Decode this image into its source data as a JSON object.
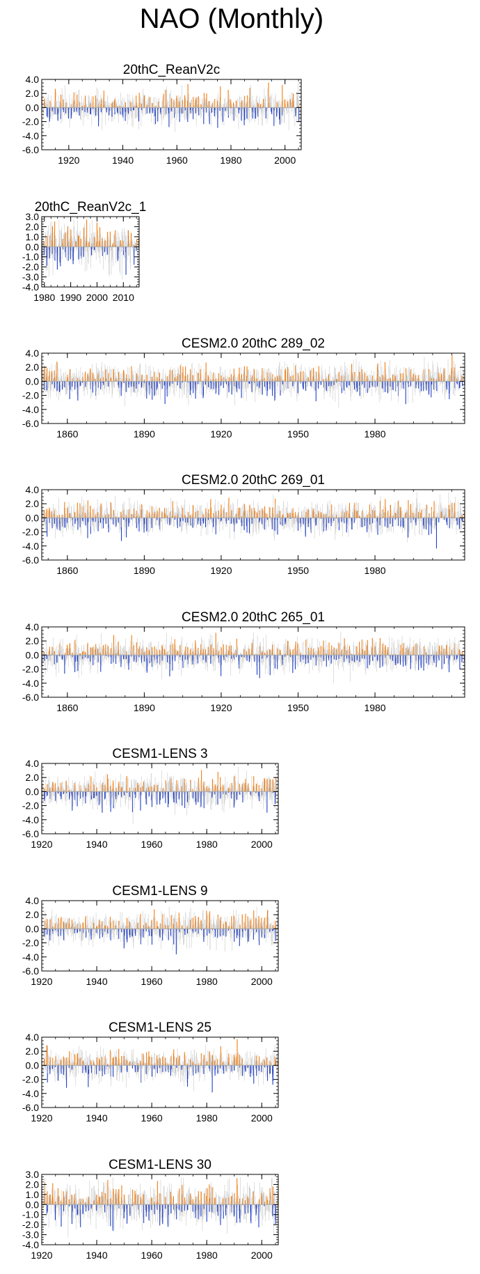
{
  "figure_title": "NAO (Monthly)",
  "colors": {
    "positive": "#f07c10",
    "negative": "#1f3fc8",
    "mean_line": "#aaaaaa",
    "axis": "#000000"
  },
  "chart_data": [
    {
      "type": "bar",
      "title": "20thC_ReanV2c",
      "x_start": 1910,
      "x_end": 2006,
      "xlim": [
        1910,
        2006
      ],
      "ylim": [
        -6.0,
        4.0
      ],
      "yticks": [
        "4.0",
        "2.0",
        "0.0",
        "-2.0",
        "-4.0",
        "-6.0"
      ],
      "xticks": [
        1920,
        1940,
        1960,
        1980,
        2000
      ],
      "grid": false,
      "seed": 11,
      "series": [
        {
          "values": "monthly NAO index (positive orange, negative blue)"
        }
      ]
    },
    {
      "type": "bar",
      "title": "20thC_ReanV2c_1",
      "x_start": 1979,
      "x_end": 2016,
      "xlim": [
        1979,
        2016
      ],
      "ylim": [
        -4.0,
        3.0
      ],
      "yticks": [
        "3.0",
        "2.0",
        "1.0",
        "0.0",
        "-1.0",
        "-2.0",
        "-3.0",
        "-4.0"
      ],
      "xticks": [
        1980,
        1990,
        2000,
        2010
      ],
      "grid": false,
      "seed": 23,
      "series": [
        {
          "values": "monthly NAO index (positive orange, negative blue)"
        }
      ]
    },
    {
      "type": "bar",
      "title": "CESM2.0 20thC 289_02",
      "x_start": 1850,
      "x_end": 2015,
      "xlim": [
        1850,
        2015
      ],
      "ylim": [
        -6.0,
        4.0
      ],
      "yticks": [
        "4.0",
        "2.0",
        "0.0",
        "-2.0",
        "-4.0",
        "-6.0"
      ],
      "xticks": [
        1860,
        1890,
        1920,
        1950,
        1980
      ],
      "grid": false,
      "seed": 37,
      "series": [
        {
          "values": "monthly NAO index (positive orange, negative blue)"
        }
      ]
    },
    {
      "type": "bar",
      "title": "CESM2.0 20thC 269_01",
      "x_start": 1850,
      "x_end": 2015,
      "xlim": [
        1850,
        2015
      ],
      "ylim": [
        -6.0,
        4.0
      ],
      "yticks": [
        "4.0",
        "2.0",
        "0.0",
        "-2.0",
        "-4.0",
        "-6.0"
      ],
      "xticks": [
        1860,
        1890,
        1920,
        1950,
        1980
      ],
      "grid": false,
      "seed": 41,
      "series": [
        {
          "values": "monthly NAO index (positive orange, negative blue)"
        }
      ]
    },
    {
      "type": "bar",
      "title": "CESM2.0 20thC 265_01",
      "x_start": 1850,
      "x_end": 2015,
      "xlim": [
        1850,
        2015
      ],
      "ylim": [
        -6.0,
        4.0
      ],
      "yticks": [
        "4.0",
        "2.0",
        "0.0",
        "-2.0",
        "-4.0",
        "-6.0"
      ],
      "xticks": [
        1860,
        1890,
        1920,
        1950,
        1980
      ],
      "grid": false,
      "seed": 53,
      "series": [
        {
          "values": "monthly NAO index (positive orange, negative blue)"
        }
      ]
    },
    {
      "type": "bar",
      "title": "CESM1-LENS 3",
      "x_start": 1920,
      "x_end": 2006,
      "xlim": [
        1920,
        2006
      ],
      "ylim": [
        -6.0,
        4.0
      ],
      "yticks": [
        "4.0",
        "2.0",
        "0.0",
        "-2.0",
        "-4.0",
        "-6.0"
      ],
      "xticks": [
        1920,
        1940,
        1960,
        1980,
        2000
      ],
      "grid": false,
      "seed": 61,
      "series": [
        {
          "values": "monthly NAO index (positive orange, negative blue)"
        }
      ]
    },
    {
      "type": "bar",
      "title": "CESM1-LENS 9",
      "x_start": 1920,
      "x_end": 2006,
      "xlim": [
        1920,
        2006
      ],
      "ylim": [
        -6.0,
        4.0
      ],
      "yticks": [
        "4.0",
        "2.0",
        "0.0",
        "-2.0",
        "-4.0",
        "-6.0"
      ],
      "xticks": [
        1920,
        1940,
        1960,
        1980,
        2000
      ],
      "grid": false,
      "seed": 71,
      "series": [
        {
          "values": "monthly NAO index (positive orange, negative blue)"
        }
      ]
    },
    {
      "type": "bar",
      "title": "CESM1-LENS 25",
      "x_start": 1920,
      "x_end": 2006,
      "xlim": [
        1920,
        2006
      ],
      "ylim": [
        -6.0,
        4.0
      ],
      "yticks": [
        "4.0",
        "2.0",
        "0.0",
        "-2.0",
        "-4.0",
        "-6.0"
      ],
      "xticks": [
        1920,
        1940,
        1960,
        1980,
        2000
      ],
      "grid": false,
      "seed": 83,
      "series": [
        {
          "values": "monthly NAO index (positive orange, negative blue)"
        }
      ]
    },
    {
      "type": "bar",
      "title": "CESM1-LENS 30",
      "x_start": 1920,
      "x_end": 2006,
      "xlim": [
        1920,
        2006
      ],
      "ylim": [
        -4.0,
        3.0
      ],
      "yticks": [
        "3.0",
        "2.0",
        "1.0",
        "0.0",
        "-1.0",
        "-2.0",
        "-3.0",
        "-4.0"
      ],
      "xticks": [
        1920,
        1940,
        1960,
        1980,
        2000
      ],
      "grid": false,
      "seed": 97,
      "series": [
        {
          "values": "monthly NAO index (positive orange, negative blue)"
        }
      ]
    }
  ]
}
